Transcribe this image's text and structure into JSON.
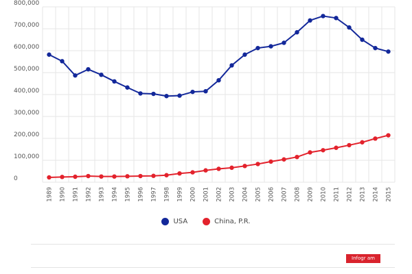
{
  "chart_data": {
    "type": "line",
    "categories": [
      "1989",
      "1990",
      "1991",
      "1992",
      "1993",
      "1994",
      "1995",
      "1996",
      "1997",
      "1998",
      "1999",
      "2000",
      "2001",
      "2002",
      "2003",
      "2004",
      "2005",
      "2006",
      "2007",
      "2008",
      "2009",
      "2010",
      "2011",
      "2012",
      "2013",
      "2014",
      "2015"
    ],
    "yticks": [
      "0",
      "100,000",
      "200,000",
      "300,000",
      "400,000",
      "500,000",
      "600,000",
      "700,000",
      "800,000"
    ],
    "ylim": [
      0,
      800000
    ],
    "grid": true,
    "legend_position": "bottom-center",
    "series": [
      {
        "name": "USA",
        "color": "#13289a",
        "values": [
          582000,
          552000,
          487000,
          515000,
          490000,
          460000,
          432000,
          405000,
          403000,
          393000,
          395000,
          412000,
          415000,
          465000,
          533000,
          582000,
          612000,
          620000,
          636000,
          684000,
          738000,
          758000,
          749000,
          706000,
          650000,
          612000,
          596000
        ]
      },
      {
        "name": "China, P.R.",
        "color": "#e3222c",
        "values": [
          22000,
          24000,
          25000,
          28000,
          26000,
          26000,
          27000,
          28000,
          29000,
          32000,
          40000,
          45000,
          54000,
          61000,
          66000,
          74000,
          83000,
          94000,
          104000,
          115000,
          136000,
          146000,
          157000,
          169000,
          182000,
          199000,
          214000
        ]
      }
    ]
  },
  "branding": {
    "label": "Infogr am"
  }
}
